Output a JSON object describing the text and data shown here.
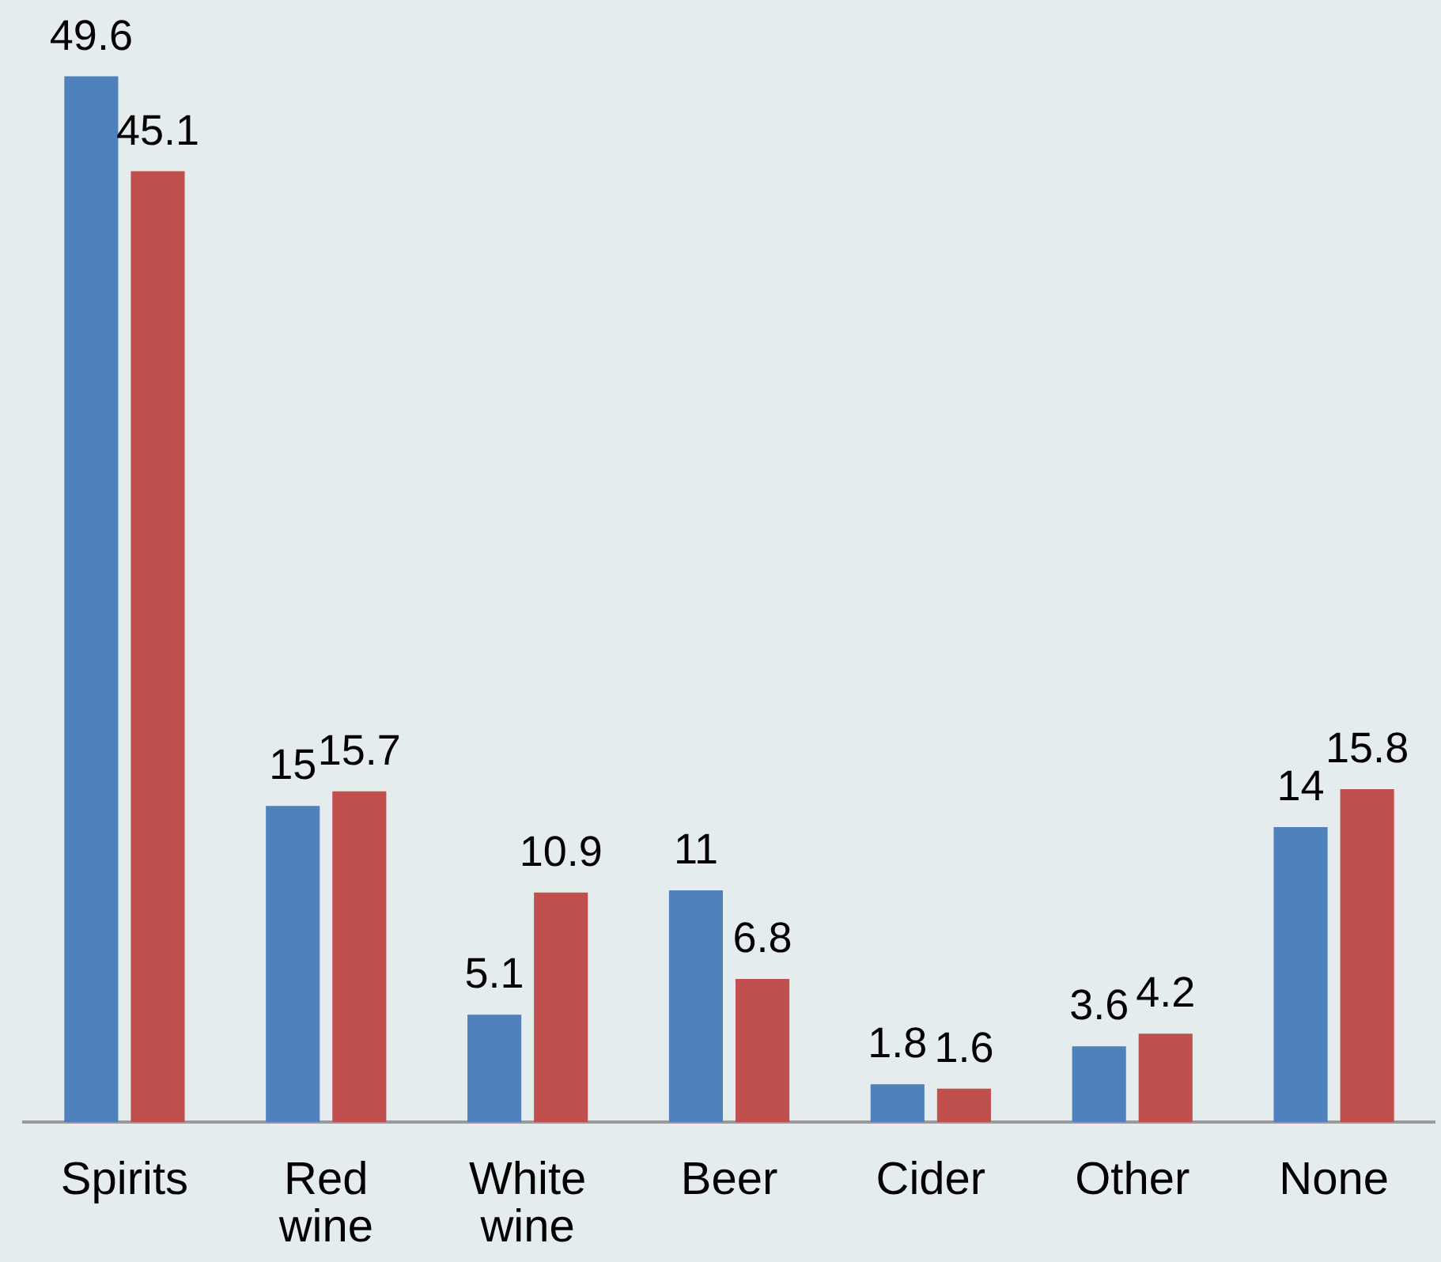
{
  "chart_data": {
    "type": "bar",
    "categories": [
      "Spirits",
      "Red wine",
      "White wine",
      "Beer",
      "Cider",
      "Other",
      "None"
    ],
    "series": [
      {
        "color": "#4f81bd",
        "values": [
          49.6,
          15,
          5.1,
          11,
          1.8,
          3.6,
          14
        ]
      },
      {
        "color": "#c0504d",
        "values": [
          45.1,
          15.7,
          10.9,
          6.8,
          1.6,
          4.2,
          15.8
        ]
      }
    ],
    "data_labels": true
  }
}
